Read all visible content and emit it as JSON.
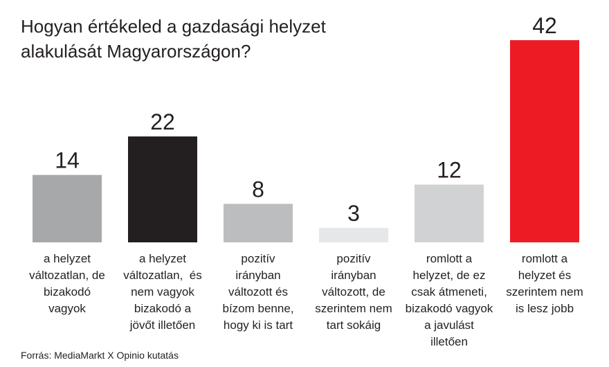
{
  "chart_data": {
    "type": "bar",
    "title": "Hogyan értékeled a gazdasági helyzet alakulását Magyarországon?",
    "categories": [
      "a helyzet változatlan, de bizakodó vagyok",
      "a helyzet változatlan,  és nem vagyok bizakodó a jövőt illetően",
      "pozitív irányban változott és bízom benne, hogy ki is tart",
      "pozitív irányban változott, de szerintem nem tart sokáig",
      "romlott a helyzet, de ez csak átmeneti, bizakodó vagyok a javulást illetően",
      "romlott a helyzet és szerintem nem is lesz jobb"
    ],
    "category_lines": [
      [
        "a helyzet",
        "változatlan, de",
        "bizakodó",
        "vagyok"
      ],
      [
        "a helyzet",
        "változatlan,  és",
        "nem vagyok",
        "bizakodó a",
        "jövőt illetően"
      ],
      [
        "pozitív",
        "irányban",
        "változott és",
        "bízom benne,",
        "hogy ki is tart"
      ],
      [
        "pozitív",
        "irányban",
        "változott, de",
        "szerintem nem",
        "tart sokáig"
      ],
      [
        "romlott a",
        "helyzet, de ez",
        "csak átmeneti,",
        "bizakodó vagyok",
        "a javulást",
        "illetően"
      ],
      [
        "romlott a",
        "helyzet és",
        "szerintem nem",
        "is lesz jobb"
      ]
    ],
    "values": [
      14,
      22,
      8,
      3,
      12,
      42
    ],
    "colors": [
      "#a7a8aa",
      "#231f20",
      "#bcbdbf",
      "#e6e7e8",
      "#d1d2d3",
      "#ed1c24"
    ],
    "ylim": [
      0,
      42
    ],
    "grid": false,
    "legend": "none"
  },
  "source": "Forrás: MediaMarkt X Opinio kutatás"
}
